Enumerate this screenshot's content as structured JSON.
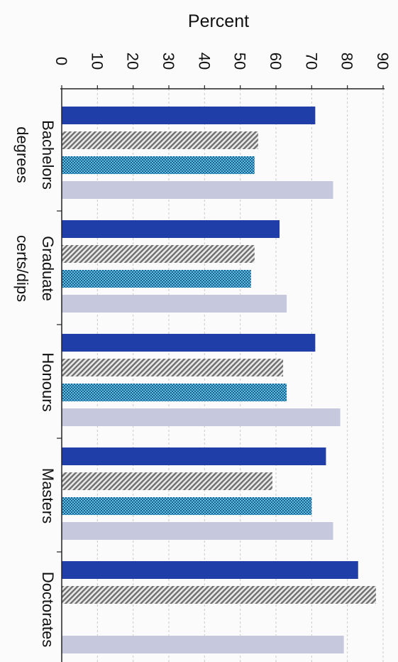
{
  "chart_data": {
    "type": "bar",
    "orientation": "horizontal",
    "value_axis_label": "Percent",
    "xlim": [
      0,
      90
    ],
    "ticks": [
      0,
      10,
      20,
      30,
      40,
      50,
      60,
      70,
      80,
      90
    ],
    "grid": true,
    "legend": "none",
    "categories": [
      [
        "Bachelors",
        "degrees"
      ],
      [
        "Graduate",
        "certs/dips"
      ],
      [
        "Honours"
      ],
      [
        "Masters"
      ],
      [
        "Doctorates"
      ]
    ],
    "series": [
      {
        "color": "#1f3ea8",
        "pattern": "solid",
        "values": [
          71,
          61,
          71,
          74,
          83
        ]
      },
      {
        "color": "#8a8a8a",
        "pattern": "diagonal-hatch",
        "values": [
          55,
          54,
          62,
          59,
          88
        ]
      },
      {
        "color": "#3aa0cf",
        "pattern": "checker",
        "values": [
          54,
          53,
          63,
          70,
          null
        ]
      },
      {
        "color": "#c6c8dd",
        "pattern": "solid",
        "values": [
          76,
          63,
          78,
          76,
          79
        ]
      }
    ]
  }
}
